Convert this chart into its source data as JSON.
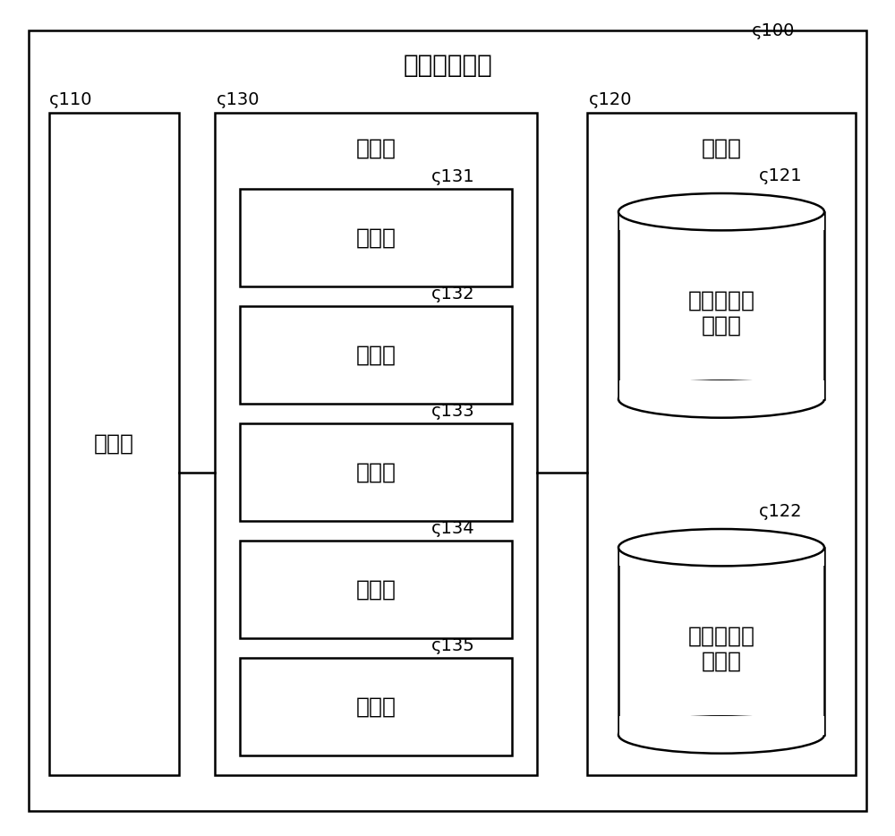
{
  "title": "信息处理装置",
  "label_100": "100",
  "label_110": "110",
  "label_120": "120",
  "label_130": "130",
  "label_121": "121",
  "label_122": "122",
  "label_131": "131",
  "label_132": "132",
  "label_133": "133",
  "label_134": "134",
  "label_135": "135",
  "text_110": "通信部",
  "text_120": "存储部",
  "text_130": "控制部",
  "text_121": "发布者信息\n存储部",
  "text_122": "化妆品信息\n存储部",
  "text_131": "获取部",
  "text_132": "生成部",
  "text_133": "应用部",
  "text_134": "提供部",
  "text_135": "决定部",
  "bg_color": "#ffffff",
  "lw": 1.8,
  "font_size_title": 20,
  "font_size_section": 18,
  "font_size_box": 18,
  "font_size_ref": 14
}
